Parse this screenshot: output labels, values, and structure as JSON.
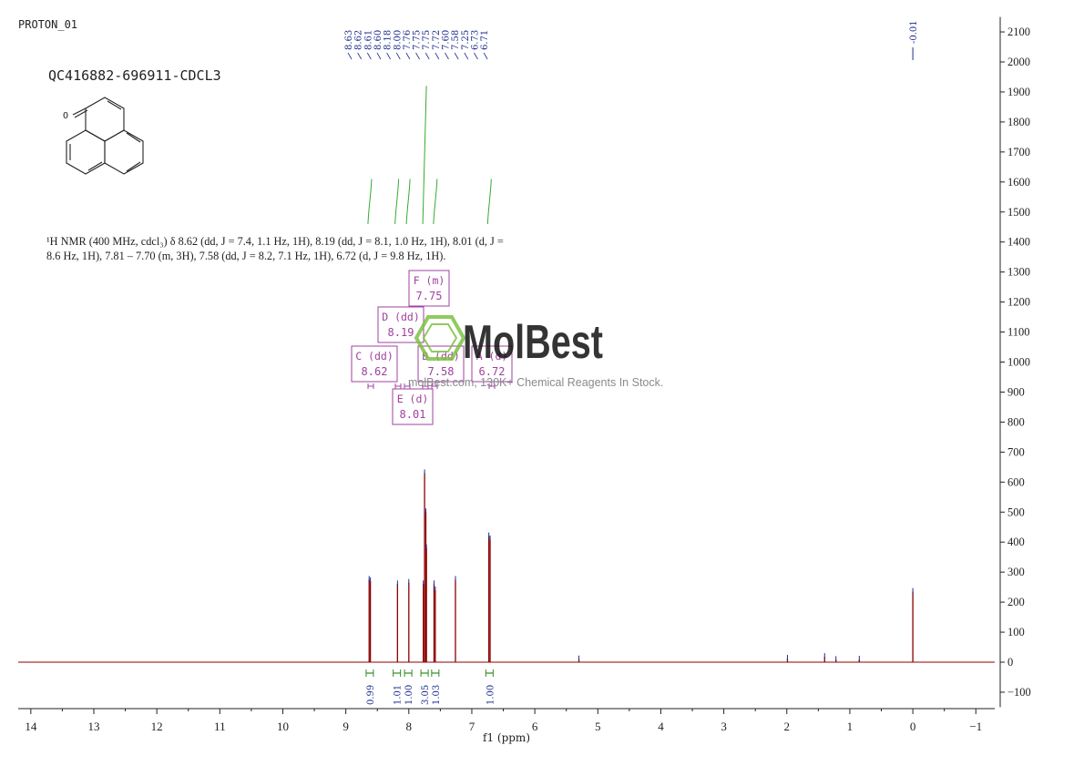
{
  "header": {
    "run_title": "PROTON_01",
    "experiment_id": "QC416882-696911-CDCL3"
  },
  "description": {
    "line1": "¹H NMR (400 MHz, cdcl₃) δ 8.62 (dd, J = 7.4, 1.1 Hz, 1H), 8.19 (dd, J = 8.1, 1.0 Hz, 1H), 8.01 (d, J =",
    "line2": "8.6 Hz, 1H), 7.81 – 7.70 (m, 3H), 7.58 (dd, J = 8.2, 7.1 Hz, 1H), 6.72 (d, J = 9.8 Hz, 1H)."
  },
  "watermark": {
    "brand": "MolBest",
    "tagline": "molBest.com, 130K+ Chemical Reagents In Stock."
  },
  "colors": {
    "spectrum": "#8b0000",
    "peak_labels": "#1f2f8f",
    "integral": "#2e8b22",
    "multiplet_box": "#a040a0",
    "integral_curve": "#33aa33",
    "logo": "#7dc242"
  },
  "chart_data": {
    "type": "line",
    "xlabel": "f1 (ppm)",
    "ylabel": "",
    "xlim": [
      14.2,
      -1.3
    ],
    "ylim": [
      -150,
      2150
    ],
    "x_ticks": [
      14,
      13,
      12,
      11,
      10,
      9,
      8,
      7,
      6,
      5,
      4,
      3,
      2,
      1,
      0,
      -1
    ],
    "y_ticks": [
      -100,
      0,
      100,
      200,
      300,
      400,
      500,
      600,
      700,
      800,
      900,
      1000,
      1100,
      1200,
      1300,
      1400,
      1500,
      1600,
      1700,
      1800,
      1900,
      2000,
      2100
    ],
    "peaks": [
      {
        "ppm": 8.63,
        "height": 275
      },
      {
        "ppm": 8.61,
        "height": 270
      },
      {
        "ppm": 8.18,
        "height": 260
      },
      {
        "ppm": 8.0,
        "height": 265
      },
      {
        "ppm": 7.77,
        "height": 260
      },
      {
        "ppm": 7.75,
        "height": 630
      },
      {
        "ppm": 7.73,
        "height": 500
      },
      {
        "ppm": 7.72,
        "height": 380
      },
      {
        "ppm": 7.6,
        "height": 260
      },
      {
        "ppm": 7.58,
        "height": 240
      },
      {
        "ppm": 7.26,
        "height": 275
      },
      {
        "ppm": 6.73,
        "height": 420
      },
      {
        "ppm": 6.71,
        "height": 410
      },
      {
        "ppm": 0.0,
        "height": 235
      },
      {
        "ppm": 1.99,
        "height": 12
      },
      {
        "ppm": 1.4,
        "height": 18
      },
      {
        "ppm": 1.22,
        "height": 8
      },
      {
        "ppm": 0.85,
        "height": 9
      },
      {
        "ppm": 5.3,
        "height": 10
      }
    ],
    "peak_labels": [
      "8.63",
      "8.62",
      "8.61",
      "8.60",
      "8.18",
      "8.00",
      "7.76",
      "7.75",
      "7.75",
      "7.72",
      "7.60",
      "7.58",
      "7.25",
      "6.73",
      "6.71"
    ],
    "tms_label": "-0.01",
    "integrals": [
      {
        "ppm": 8.62,
        "value": "0.99"
      },
      {
        "ppm": 8.19,
        "value": "1.01"
      },
      {
        "ppm": 8.01,
        "value": "1.00"
      },
      {
        "ppm": 7.75,
        "value": "3.05"
      },
      {
        "ppm": 7.58,
        "value": "1.03"
      },
      {
        "ppm": 6.72,
        "value": "1.00"
      }
    ],
    "integral_curves": [
      {
        "ppm": 8.62,
        "top": 1610
      },
      {
        "ppm": 8.19,
        "top": 1610
      },
      {
        "ppm": 8.01,
        "top": 1610
      },
      {
        "ppm": 7.75,
        "top": 1920
      },
      {
        "ppm": 7.58,
        "top": 1610
      },
      {
        "ppm": 6.72,
        "top": 1610
      }
    ],
    "multiplets": [
      {
        "letter": "F",
        "type": "(m)",
        "shift": "7.75"
      },
      {
        "letter": "D",
        "type": "(dd)",
        "shift": "8.19"
      },
      {
        "letter": "C",
        "type": "(dd)",
        "shift": "8.62"
      },
      {
        "letter": "B",
        "type": "(dd)",
        "shift": "7.58"
      },
      {
        "letter": "A",
        "type": "(d)",
        "shift": "6.72"
      },
      {
        "letter": "E",
        "type": "(d)",
        "shift": "8.01"
      }
    ]
  }
}
